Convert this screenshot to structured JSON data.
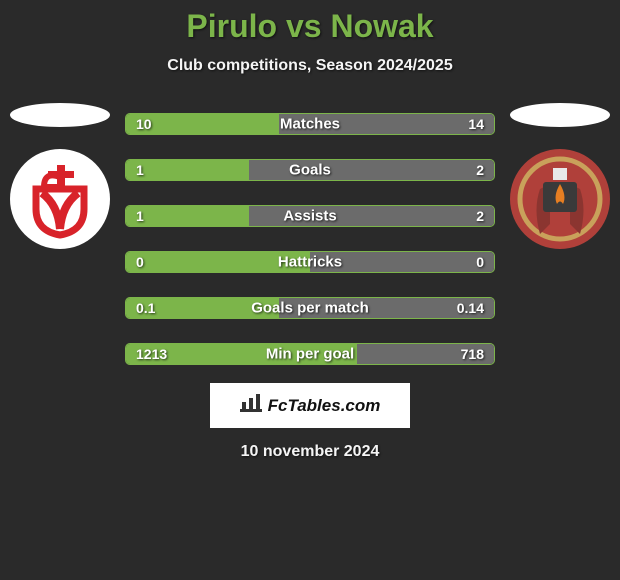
{
  "title": "Pirulo vs Nowak",
  "subtitle": "Club competitions, Season 2024/2025",
  "branding_text": "FcTables.com",
  "date_text": "10 november 2024",
  "colors": {
    "accent": "#7cb54a",
    "bar_right": "#6b6b6b",
    "background": "#2a2a2a",
    "crest_left_bg": "#ffffff",
    "crest_left_fg": "#d8232a",
    "crest_right_bg": "#b0403a",
    "crest_right_ring": "#c9a15b",
    "crest_right_flame": "#e67e22"
  },
  "bars": [
    {
      "label": "Matches",
      "left_val": "10",
      "right_val": "14",
      "left_pct": 41.7
    },
    {
      "label": "Goals",
      "left_val": "1",
      "right_val": "2",
      "left_pct": 33.3
    },
    {
      "label": "Assists",
      "left_val": "1",
      "right_val": "2",
      "left_pct": 33.3
    },
    {
      "label": "Hattricks",
      "left_val": "0",
      "right_val": "0",
      "left_pct": 50.0
    },
    {
      "label": "Goals per match",
      "left_val": "0.1",
      "right_val": "0.14",
      "left_pct": 41.7
    },
    {
      "label": "Min per goal",
      "left_val": "1213",
      "right_val": "718",
      "left_pct": 62.8
    }
  ]
}
